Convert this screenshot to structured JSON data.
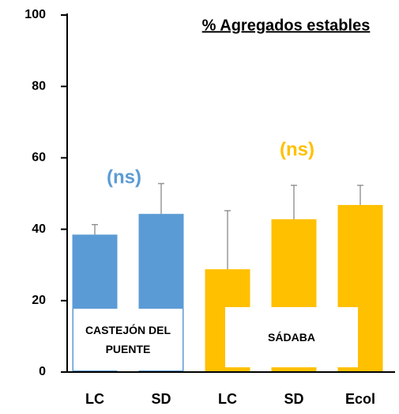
{
  "chart_data": {
    "type": "bar",
    "title": "% Agregados estables",
    "categories": [
      "LC",
      "SD",
      "LC",
      "SD",
      "Ecol"
    ],
    "series": [
      {
        "name": "CASTEJÓN DEL PUENTE",
        "color": "#5b9bd5",
        "note": "(ns)",
        "values": [
          38.5,
          44.3,
          null,
          null,
          null
        ],
        "errors": [
          2.8,
          8.5,
          null,
          null,
          null
        ]
      },
      {
        "name": "SÁDABA",
        "color": "#ffc000",
        "note": "(ns)",
        "values": [
          null,
          null,
          28.8,
          42.8,
          46.8
        ],
        "errors": [
          null,
          null,
          16.4,
          9.5,
          5.5
        ]
      }
    ],
    "ylim": [
      0,
      100
    ],
    "yticks": [
      0,
      20,
      40,
      60,
      80,
      100
    ],
    "grid": false
  }
}
